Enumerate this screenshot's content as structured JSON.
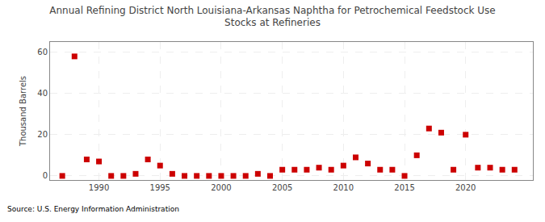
{
  "chart_data": {
    "type": "scatter",
    "title": "Annual Refining District North Louisiana-Arkansas Naphtha for Petrochemical Feedstock Use\nStocks at Refineries",
    "ylabel": "Thousand Barrels",
    "source": "Source: U.S. Energy Information Administration",
    "color": "#cc0000",
    "marker": "square",
    "x": [
      1987,
      1988,
      1989,
      1990,
      1991,
      1992,
      1993,
      1994,
      1995,
      1996,
      1997,
      1998,
      1999,
      2000,
      2001,
      2002,
      2003,
      2004,
      2005,
      2006,
      2007,
      2008,
      2009,
      2010,
      2011,
      2012,
      2013,
      2014,
      2015,
      2016,
      2017,
      2018,
      2019,
      2020,
      2021,
      2022,
      2023,
      2024
    ],
    "values": [
      0,
      58,
      8,
      7,
      0,
      0,
      1,
      8,
      5,
      1,
      0,
      0,
      0,
      0,
      0,
      0,
      1,
      0,
      3,
      3,
      3,
      4,
      3,
      5,
      9,
      6,
      3,
      3,
      0,
      10,
      23,
      21,
      3,
      20,
      4,
      4,
      3,
      3
    ],
    "xlim": [
      1986,
      2025.5
    ],
    "ylim": [
      -2,
      65
    ],
    "xticks": [
      1990,
      1995,
      2000,
      2005,
      2010,
      2015,
      2020
    ],
    "yticks": [
      0,
      20,
      40,
      60
    ],
    "grid": true
  }
}
